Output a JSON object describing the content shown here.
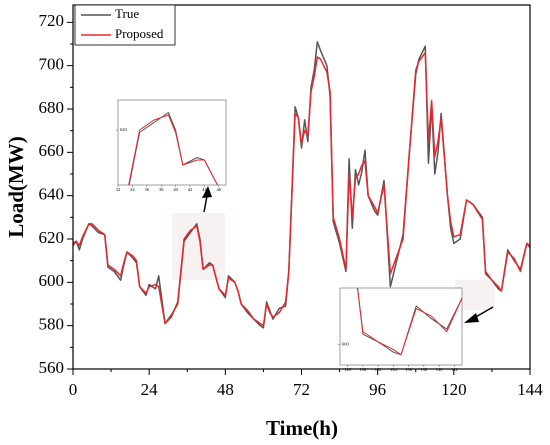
{
  "chart_data": [
    {
      "type": "line",
      "xlabel": "Time(h)",
      "ylabel": "Load(MW)",
      "x": [
        0,
        1,
        2,
        3,
        5,
        6,
        8,
        10,
        11,
        13,
        15,
        16,
        17,
        19,
        20,
        21,
        23,
        24,
        26,
        27,
        29,
        31,
        33,
        35,
        37,
        39,
        40,
        41,
        43,
        44,
        46,
        48,
        49,
        51,
        52,
        53,
        55,
        57,
        59,
        60,
        61,
        62,
        63,
        65,
        67,
        68,
        70,
        71,
        72,
        73,
        74,
        75,
        76,
        77,
        78,
        80,
        81,
        82,
        84,
        86,
        87,
        88,
        89,
        90,
        91,
        92,
        93,
        95,
        96,
        98,
        100,
        102,
        104,
        106,
        108,
        109,
        111,
        112,
        113,
        114,
        115,
        116,
        118,
        119,
        120,
        122,
        124,
        126,
        129,
        130,
        132,
        134,
        135,
        137,
        139,
        141,
        143,
        144
      ],
      "series": [
        {
          "name": "True",
          "color": "#555555",
          "values": [
            617,
            619,
            615,
            620,
            627,
            626,
            623,
            622,
            607,
            605,
            601,
            608,
            614,
            611,
            609,
            598,
            594,
            599,
            597,
            603,
            581,
            585,
            590,
            619,
            623,
            627,
            620,
            606,
            609,
            608,
            597,
            593,
            603,
            600,
            596,
            590,
            586,
            583,
            580,
            579,
            591,
            587,
            583,
            588,
            589,
            605,
            681,
            676,
            662,
            675,
            665,
            690,
            698,
            711,
            707,
            700,
            686,
            628,
            618,
            605,
            657,
            625,
            652,
            645,
            651,
            661,
            640,
            633,
            631,
            647,
            598,
            610,
            622,
            660,
            696,
            703,
            709,
            655,
            682,
            650,
            660,
            678,
            640,
            625,
            618,
            620,
            638,
            636,
            630,
            604,
            601,
            597,
            596,
            615,
            610,
            606,
            618,
            616
          ]
        },
        {
          "name": "Proposed",
          "color": "#e8282e",
          "values": [
            618,
            619,
            617,
            621,
            627,
            627,
            624,
            622,
            608,
            606,
            603,
            609,
            614,
            612,
            610,
            598,
            595,
            598,
            599,
            598,
            581,
            584,
            591,
            620,
            624,
            626,
            619,
            606,
            608,
            608,
            597,
            594,
            602,
            600,
            596,
            590,
            587,
            583,
            581,
            580,
            590,
            586,
            584,
            586,
            591,
            605,
            678,
            676,
            664,
            670,
            668,
            688,
            695,
            704,
            703,
            697,
            688,
            630,
            620,
            606,
            650,
            630,
            648,
            650,
            654,
            656,
            640,
            635,
            632,
            645,
            604,
            612,
            620,
            660,
            698,
            702,
            706,
            665,
            684,
            658,
            665,
            676,
            640,
            628,
            621,
            622,
            638,
            636,
            629,
            605,
            601,
            598,
            596,
            614,
            611,
            605,
            618,
            617
          ]
        }
      ],
      "xlim": [
        0,
        144
      ],
      "ylim": [
        560,
        728
      ],
      "xticks": [
        0,
        24,
        48,
        72,
        96,
        120,
        144
      ],
      "yticks": [
        560,
        580,
        600,
        620,
        640,
        660,
        680,
        700,
        720
      ],
      "legend": "upper left"
    },
    {
      "type": "inset",
      "xlim": [
        32,
        47
      ],
      "ylim": [
        598,
        632
      ],
      "xticks": [
        32,
        34,
        36,
        38,
        40,
        42,
        44,
        46
      ],
      "yticks": [
        620
      ]
    },
    {
      "type": "inset",
      "xlim": [
        127,
        143
      ],
      "ylim": [
        592,
        622
      ],
      "xticks": [
        128,
        130,
        132,
        134,
        136,
        138,
        140,
        142
      ],
      "yticks": [
        600
      ]
    }
  ]
}
